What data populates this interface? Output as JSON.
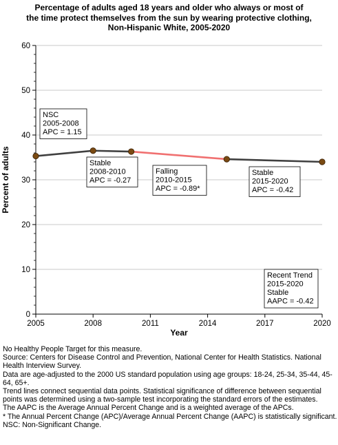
{
  "chart_data": {
    "type": "line",
    "title_lines": [
      "Percentage of adults aged 18 years and older who always or most of",
      "the time protect themselves from the sun by wearing protective clothing,",
      "Non-Hispanic White,  2005-2020"
    ],
    "xlabel": "Year",
    "ylabel": "Percent of adults",
    "xlim": [
      2005,
      2020
    ],
    "ylim": [
      0,
      60
    ],
    "x_ticks": [
      2005,
      2008,
      2011,
      2014,
      2017,
      2020
    ],
    "y_ticks": [
      0,
      10,
      20,
      30,
      40,
      50,
      60
    ],
    "grid": true,
    "points": [
      {
        "x": 2005,
        "y": 35.3
      },
      {
        "x": 2008,
        "y": 36.5
      },
      {
        "x": 2010,
        "y": 36.3
      },
      {
        "x": 2015,
        "y": 34.6
      },
      {
        "x": 2020,
        "y": 34.0
      }
    ],
    "segments": [
      {
        "from": 0,
        "to": 2,
        "trend": "stable-or-nsc",
        "color": "#404040"
      },
      {
        "from": 2,
        "to": 3,
        "trend": "falling",
        "color": "#f07070"
      },
      {
        "from": 3,
        "to": 4,
        "trend": "stable-or-nsc",
        "color": "#404040"
      }
    ],
    "marker_color": "#7a4a12",
    "annotations": [
      {
        "lines": [
          "NSC",
          "2005-2008",
          "APC =  1.15"
        ]
      },
      {
        "lines": [
          "Stable",
          "2008-2010",
          "APC = -0.27"
        ]
      },
      {
        "lines": [
          "Falling",
          "2010-2015",
          "APC = -0.89*"
        ]
      },
      {
        "lines": [
          "Stable",
          "2015-2020",
          "APC = -0.42"
        ]
      },
      {
        "lines": [
          "Recent Trend",
          "2015-2020",
          "Stable",
          "AAPC = -0.42"
        ]
      }
    ]
  },
  "notes": [
    "No Healthy People Target for this measure.",
    "Source: Centers for Disease Control and Prevention, National Center for Health Statistics. National Health Interview Survey.",
    "Data are age-adjusted to the 2000 US standard population using age groups: 18-24, 25-34, 35-44, 45-64, 65+.",
    "Trend lines connect sequential data points. Statistical significance of difference between sequential points was determined using a two-sample test incorporating the standard errors of the estimates.",
    "The AAPC is the Average Annual Percent Change and is a weighted average of the APCs.",
    "* The Annual Percent Change (APC)/Average Annual Percent Change (AAPC) is statistically significant.",
    "NSC: Non-Significant Change."
  ]
}
